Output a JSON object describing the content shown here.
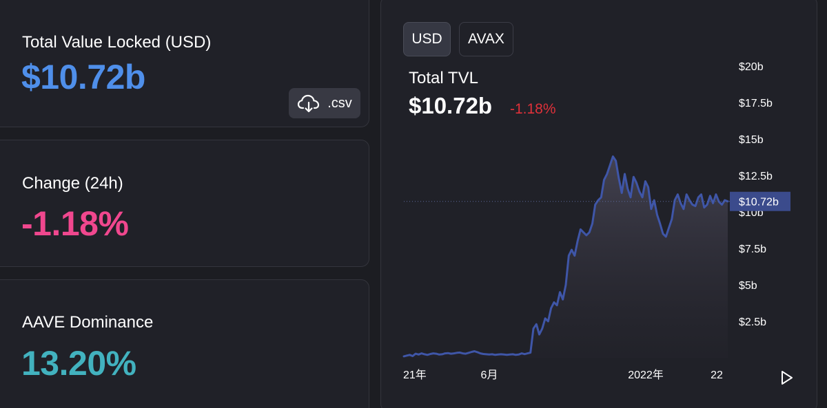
{
  "stats": {
    "tvl": {
      "label": "Total Value Locked (USD)",
      "value": "$10.72b"
    },
    "change": {
      "label": "Change (24h)",
      "value": "-1.18%"
    },
    "dominance": {
      "label": "AAVE Dominance",
      "value": "13.20%"
    },
    "csv_label": ".csv"
  },
  "chart_panel": {
    "toggles": [
      "USD",
      "AVAX"
    ],
    "selected_toggle": "USD",
    "title": "Total TVL",
    "value": "$10.72b",
    "change": "-1.18%"
  },
  "colors": {
    "tvl": "#4f8fea",
    "change": "#f0478e",
    "dominance": "#42b2bf",
    "negative": "#e0313a",
    "line": "#3f56a8",
    "price_tag": "#3b4b8c"
  },
  "icons": {
    "csv": "cloud-download-icon",
    "play": "play-icon"
  },
  "chart_data": {
    "type": "area",
    "title": "Total TVL",
    "xlabel": "",
    "ylabel": "",
    "x_tick_labels": [
      "21年",
      "6月",
      "2022年",
      "22"
    ],
    "y_tick_labels": [
      "$2.5b",
      "$5b",
      "$7.5b",
      "$10b",
      "$12.5b",
      "$15b",
      "$17.5b",
      "$20b"
    ],
    "ylim": [
      0,
      20
    ],
    "current_value_label": "$10.72b",
    "current_value": 10.72,
    "grid": false,
    "series": [
      {
        "values": [
          0.1,
          0.15,
          0.2,
          0.12,
          0.28,
          0.22,
          0.3,
          0.24,
          0.2,
          0.26,
          0.3,
          0.28,
          0.22,
          0.24,
          0.3,
          0.32,
          0.28,
          0.3,
          0.34,
          0.36,
          0.3,
          0.28,
          0.34,
          0.4,
          0.45,
          0.38,
          0.3,
          0.26,
          0.24,
          0.22,
          0.24,
          0.2,
          0.22,
          0.24,
          0.22,
          0.2,
          0.22,
          0.24,
          0.2,
          0.22,
          0.3,
          0.25,
          0.3,
          0.35,
          2.0,
          2.3,
          1.6,
          2.0,
          2.7,
          2.5,
          3.4,
          3.8,
          3.6,
          4.5,
          4.0,
          5.0,
          7.0,
          7.4,
          7.0,
          8.0,
          8.8,
          8.6,
          8.4,
          8.6,
          9.2,
          10.5,
          10.8,
          11.0,
          12.2,
          12.6,
          13.2,
          13.8,
          13.5,
          12.3,
          11.3,
          12.6,
          11.6,
          11.0,
          12.4,
          12.0,
          11.4,
          11.0,
          12.1,
          11.7,
          10.2,
          10.8,
          9.8,
          9.2,
          8.5,
          8.3,
          8.9,
          9.5,
          10.8,
          11.2,
          10.6,
          10.2,
          11.2,
          10.8,
          10.5,
          10.4,
          11.0,
          11.2,
          10.3,
          10.5,
          11.1,
          10.6,
          11.2,
          10.7,
          10.5,
          10.8,
          10.72
        ]
      }
    ]
  }
}
